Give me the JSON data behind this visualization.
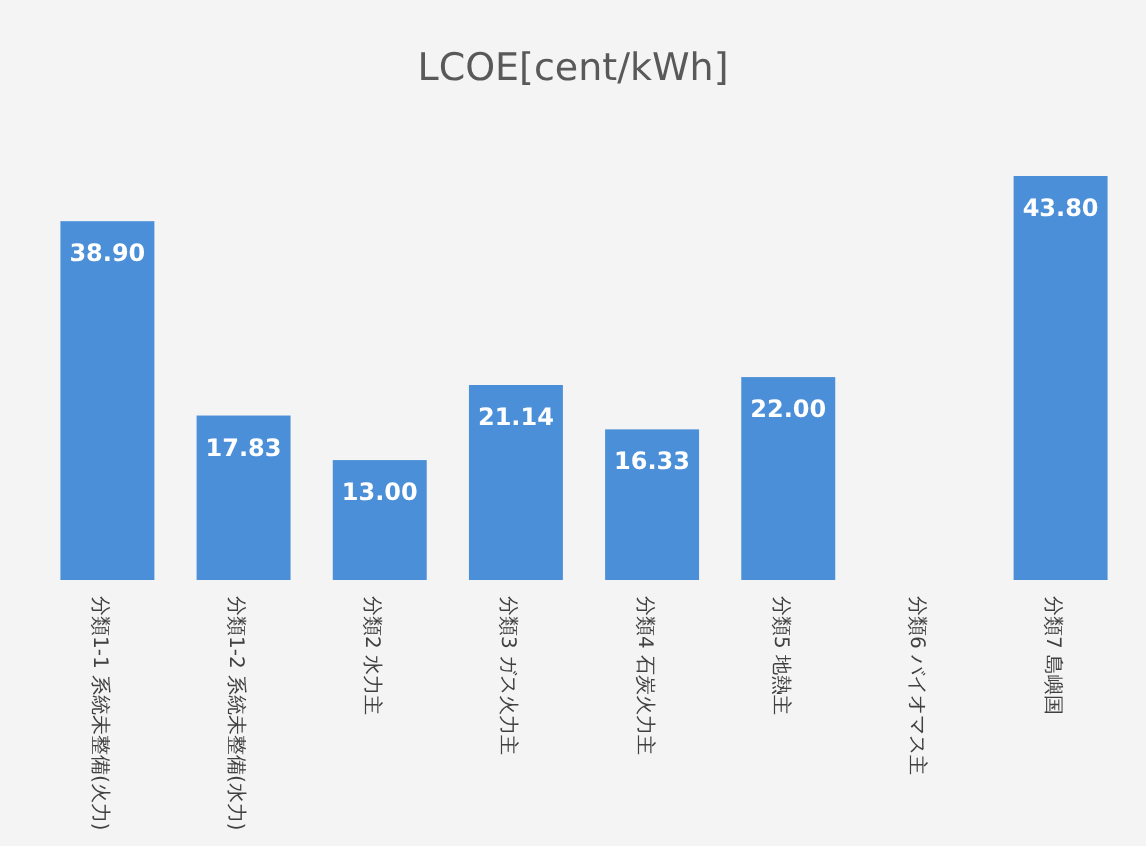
{
  "chart_data": {
    "type": "bar",
    "title": "LCOE[cent/kWh]",
    "categories": [
      "分類1-1 系統未整備(火力)",
      "分類1-2 系統未整備(水力)",
      "分類2 水力主",
      "分類3 ガス火力主",
      "分類4 石炭火力主",
      "分類5 地熱主",
      "分類6 バイオマス主",
      "分類7 島嶼国"
    ],
    "values": [
      38.9,
      17.83,
      13.0,
      21.14,
      16.33,
      22.0,
      null,
      43.8
    ],
    "value_labels": [
      "38.90",
      "17.83",
      "13.00",
      "21.14",
      "16.33",
      "22.00",
      null,
      "43.80"
    ],
    "color": "#4a8fd8"
  }
}
